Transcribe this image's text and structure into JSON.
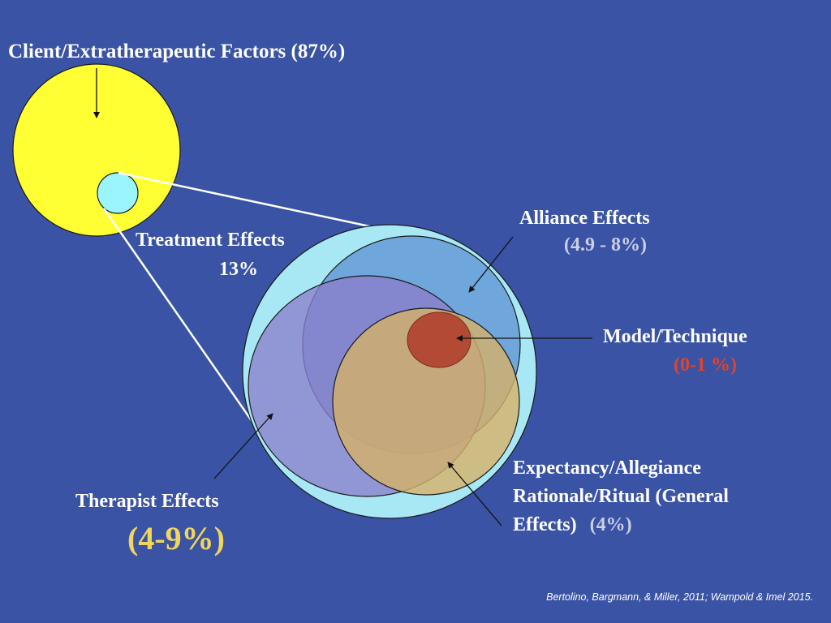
{
  "labels": {
    "client": "Client/Extratherapeutic Factors (87%)",
    "treatment_title": "Treatment Effects",
    "treatment_value": "13%",
    "alliance_title": "Alliance Effects",
    "alliance_value": "(4.9 - 8%)",
    "model_title": "Model/Technique",
    "model_value": "(0-1 %)",
    "expectancy_line1": "Expectancy/Allegiance",
    "expectancy_line2": "Rationale/Ritual (General",
    "expectancy_line3": "Effects)",
    "expectancy_value": "(4%)",
    "therapist_title": "Therapist Effects",
    "therapist_value": "(4-9%)"
  },
  "citation": "Bertolino, Bargmann, & Miller, 2011; Wampold  & Imel 2015.",
  "colors": {
    "background": "#3a53a4",
    "client_circle": "#ffff33",
    "treatment_circle": "#a8e8f4",
    "alliance_circle": "#6fa6dc",
    "therapist_circle": "#8a7fca",
    "expectancy_circle": "#d6b268",
    "model_circle": "#b34a35"
  }
}
